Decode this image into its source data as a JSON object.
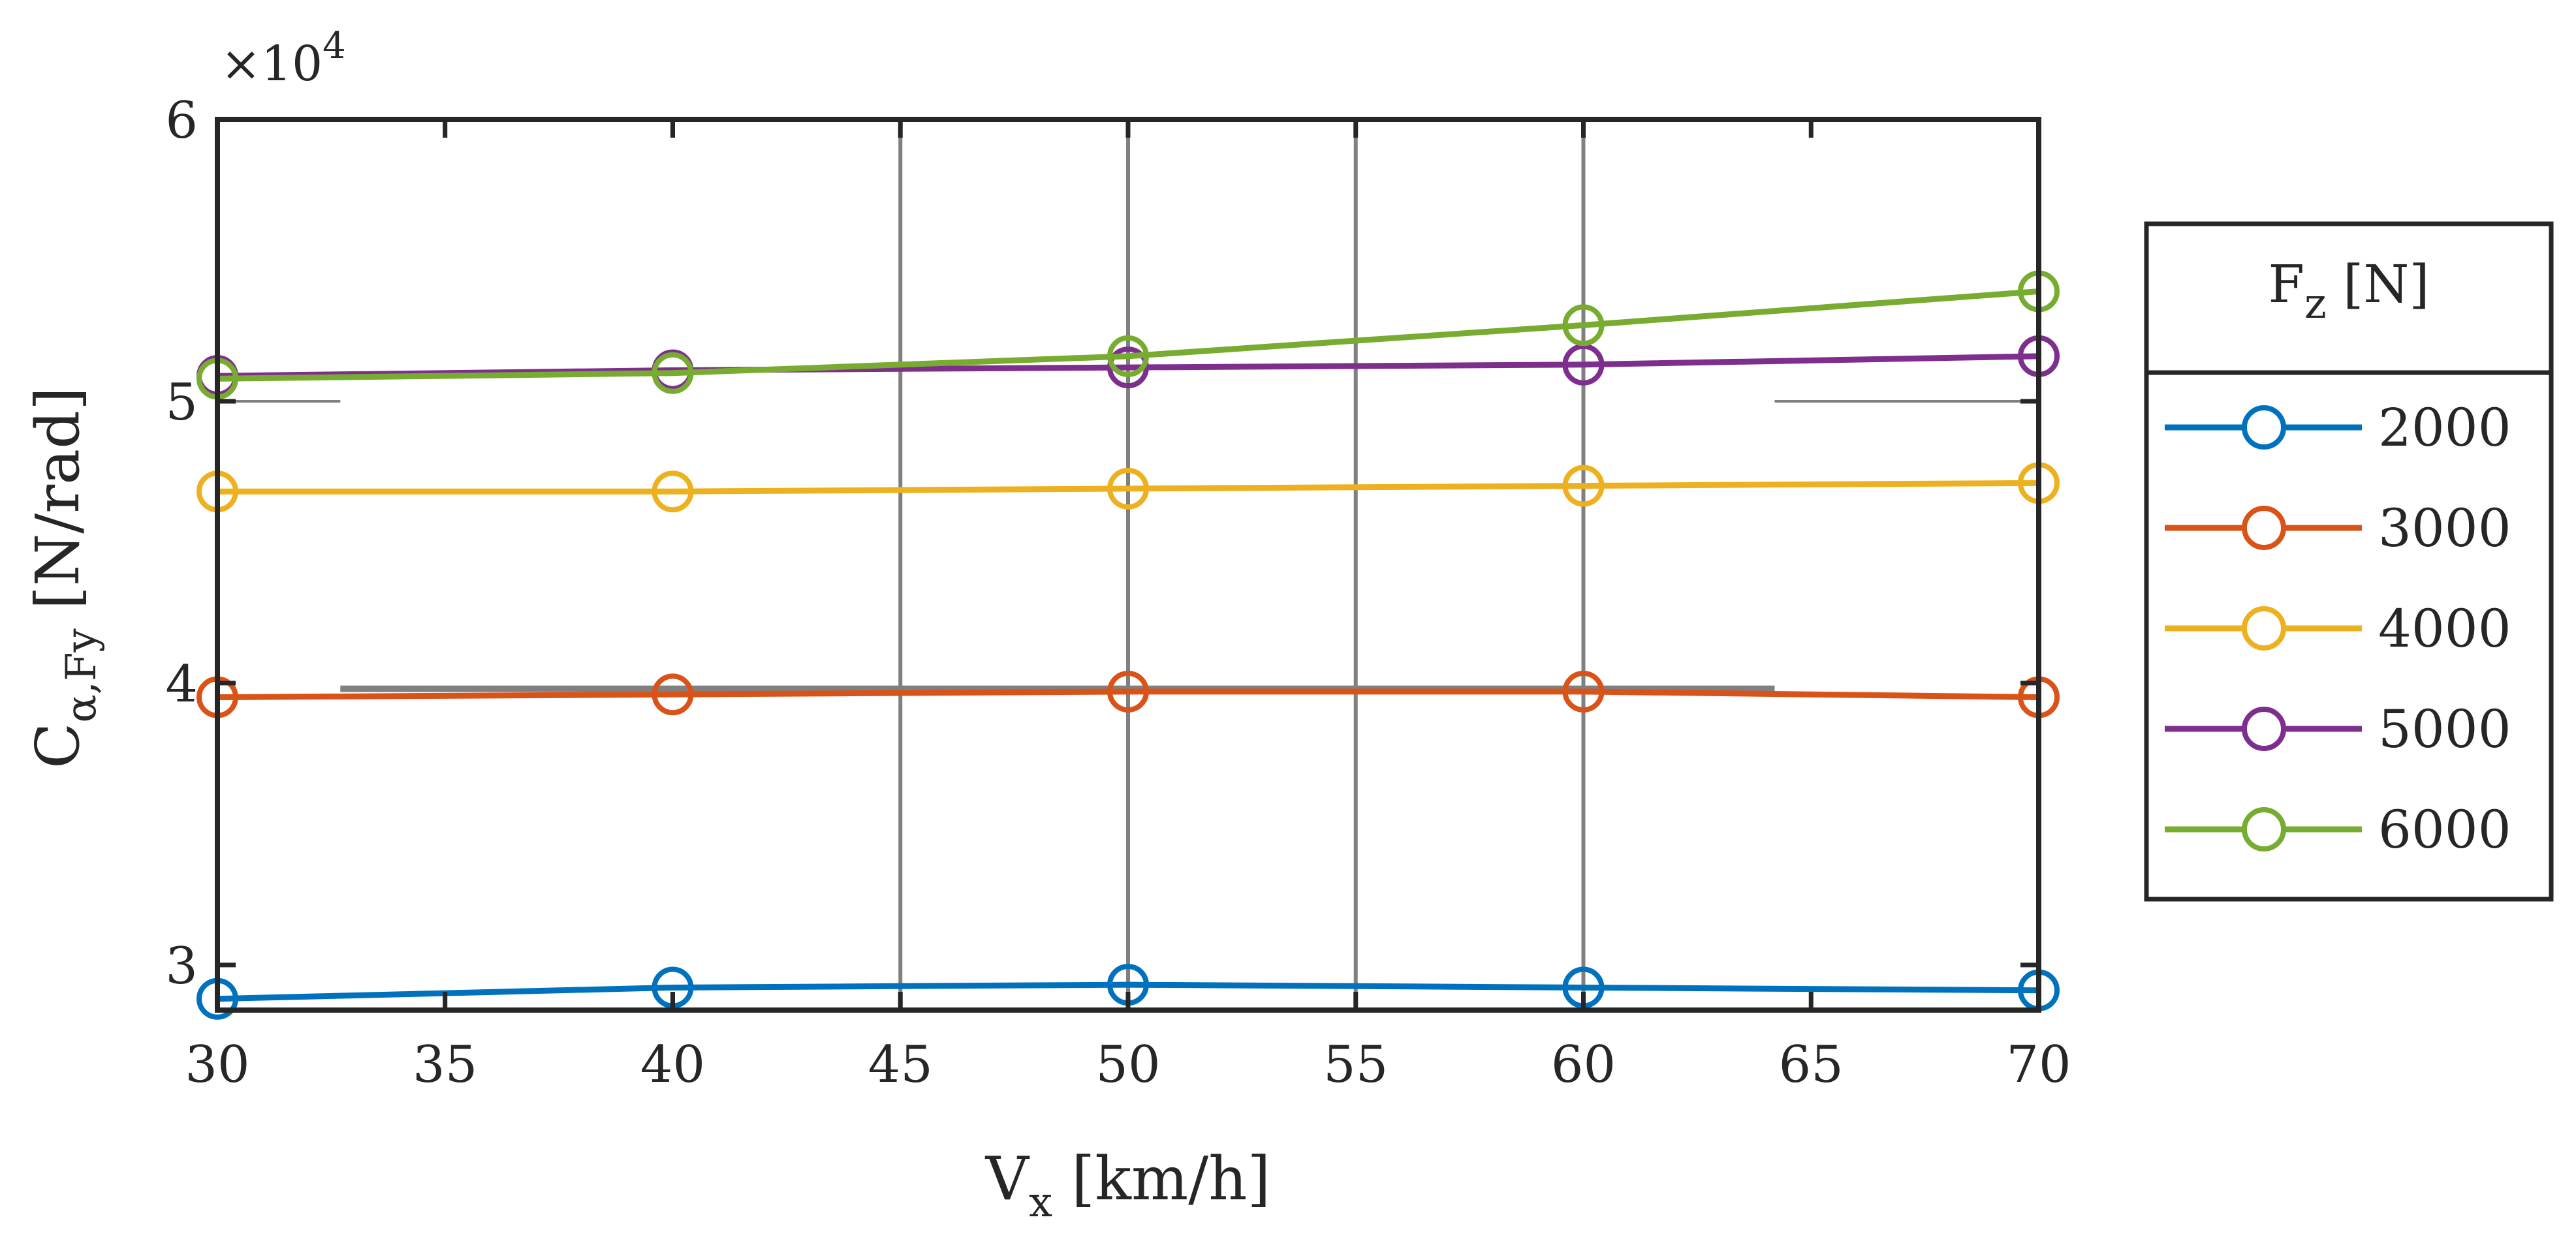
{
  "chart_data": {
    "type": "line",
    "xlabel_main": "V",
    "xlabel_sub": "x",
    "xlabel_unit": " [km/h]",
    "ylabel_main": "C",
    "ylabel_sub": "α,Fy",
    "ylabel_unit": " [N/rad]",
    "y_exponent_label": "×10",
    "y_exponent_power": "4",
    "xlim": [
      30,
      70
    ],
    "ylim": [
      28400,
      60000
    ],
    "x_ticks": [
      30,
      35,
      40,
      45,
      50,
      55,
      60,
      65,
      70
    ],
    "x_tick_labels": [
      "30",
      "35",
      "40",
      "45",
      "50",
      "55",
      "60",
      "65",
      "70"
    ],
    "y_ticks": [
      30000,
      40000,
      50000,
      60000
    ],
    "y_tick_labels": [
      "3",
      "4",
      "5",
      "6"
    ],
    "x": [
      30,
      40,
      50,
      60,
      70
    ],
    "legend": {
      "title_main": "F",
      "title_sub": "z",
      "title_unit": " [N]",
      "position": "outside-right"
    },
    "series": [
      {
        "name": "2000",
        "color": "#0072BD",
        "values": [
          28800,
          29200,
          29300,
          29200,
          29100
        ]
      },
      {
        "name": "3000",
        "color": "#D95319",
        "values": [
          39500,
          39600,
          39700,
          39700,
          39500
        ]
      },
      {
        "name": "4000",
        "color": "#EDB120",
        "values": [
          46800,
          46800,
          46900,
          47000,
          47100
        ]
      },
      {
        "name": "5000",
        "color": "#7E2F8E",
        "values": [
          50900,
          51100,
          51200,
          51300,
          51600
        ]
      },
      {
        "name": "6000",
        "color": "#77AC30",
        "values": [
          50800,
          51000,
          51600,
          52700,
          53900
        ]
      }
    ],
    "reference_lines": {
      "color": "#808080",
      "vertical_x": [
        45,
        50,
        55,
        60
      ],
      "horizontal": [
        {
          "y": 39800,
          "x_from": 32.7,
          "x_to": 64.2
        },
        {
          "y": 50000,
          "x_from": 30,
          "x_to": 32.7
        },
        {
          "y": 50000,
          "x_from": 64.2,
          "x_to": 70
        }
      ]
    }
  }
}
